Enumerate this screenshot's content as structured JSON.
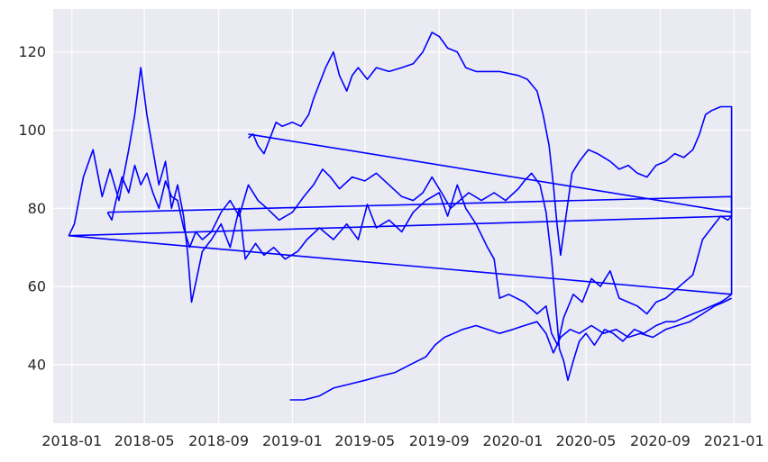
{
  "chart_data": {
    "type": "line",
    "title": "",
    "xlabel": "",
    "ylabel": "",
    "x_range": [
      "2017-12-01",
      "2021-01-29"
    ],
    "ylim": [
      25,
      131
    ],
    "x_ticks": [
      "2018-01",
      "2018-05",
      "2018-09",
      "2019-01",
      "2019-05",
      "2019-09",
      "2020-01",
      "2020-05",
      "2020-09",
      "2021-01"
    ],
    "y_ticks": [
      40,
      60,
      80,
      100,
      120
    ],
    "grid": true,
    "legend": "none",
    "colors": {
      "line": "#0000ff",
      "plot_bg": "#eaeaf2",
      "grid": "#ffffff",
      "page_bg": "#ffffff"
    },
    "series": [
      {
        "points": [
          [
            "2017-12-27",
            73
          ],
          [
            "2018-01-05",
            76
          ],
          [
            "2018-01-20",
            88
          ],
          [
            "2018-02-05",
            95
          ],
          [
            "2018-02-20",
            83
          ],
          [
            "2018-03-05",
            90
          ],
          [
            "2018-03-20",
            82
          ],
          [
            "2018-04-05",
            95
          ],
          [
            "2018-04-15",
            104
          ],
          [
            "2018-04-25",
            116
          ],
          [
            "2018-05-05",
            104
          ],
          [
            "2018-05-15",
            95
          ],
          [
            "2018-05-25",
            86
          ],
          [
            "2018-06-05",
            92
          ],
          [
            "2018-06-15",
            80
          ],
          [
            "2018-06-25",
            86
          ],
          [
            "2018-07-05",
            78
          ],
          [
            "2018-07-12",
            68
          ],
          [
            "2018-07-18",
            56
          ],
          [
            "2018-07-25",
            61
          ],
          [
            "2018-08-05",
            69
          ],
          [
            "2018-08-20",
            72
          ],
          [
            "2018-09-05",
            76
          ],
          [
            "2018-09-20",
            70
          ],
          [
            "2018-10-05",
            80
          ],
          [
            "2018-10-15",
            67
          ],
          [
            "2018-11-01",
            71
          ],
          [
            "2018-11-15",
            68
          ],
          [
            "2018-12-01",
            70
          ],
          [
            "2018-12-20",
            67
          ],
          [
            "2019-01-10",
            69
          ],
          [
            "2019-01-25",
            72
          ],
          [
            "2019-02-15",
            75
          ],
          [
            "2019-03-10",
            72
          ],
          [
            "2019-04-01",
            76
          ],
          [
            "2019-04-20",
            72
          ],
          [
            "2019-05-05",
            81
          ],
          [
            "2019-05-20",
            75
          ],
          [
            "2019-06-10",
            77
          ],
          [
            "2019-07-01",
            74
          ],
          [
            "2019-07-20",
            79
          ],
          [
            "2019-08-10",
            82
          ],
          [
            "2019-09-01",
            84
          ],
          [
            "2019-09-15",
            78
          ],
          [
            "2019-10-01",
            86
          ],
          [
            "2019-10-15",
            80
          ],
          [
            "2019-11-01",
            76
          ],
          [
            "2019-11-20",
            70
          ],
          [
            "2019-12-01",
            67
          ],
          [
            "2019-12-10",
            57
          ],
          [
            "2019-12-25",
            58
          ],
          [
            "2020-01-20",
            56
          ],
          [
            "2020-02-10",
            53
          ],
          [
            "2020-02-25",
            55
          ],
          [
            "2020-03-05",
            48
          ],
          [
            "2020-03-15",
            45
          ],
          [
            "2020-03-25",
            52
          ],
          [
            "2020-04-10",
            58
          ],
          [
            "2020-04-25",
            56
          ],
          [
            "2020-05-10",
            62
          ],
          [
            "2020-05-25",
            60
          ],
          [
            "2020-06-10",
            64
          ],
          [
            "2020-06-25",
            57
          ],
          [
            "2020-07-10",
            56
          ],
          [
            "2020-07-25",
            55
          ],
          [
            "2020-08-10",
            53
          ],
          [
            "2020-08-25",
            56
          ],
          [
            "2020-09-10",
            57
          ],
          [
            "2020-09-25",
            59
          ],
          [
            "2020-10-10",
            61
          ],
          [
            "2020-10-25",
            63
          ],
          [
            "2020-11-10",
            72
          ],
          [
            "2020-11-25",
            75
          ],
          [
            "2020-12-10",
            78
          ],
          [
            "2020-12-22",
            77
          ],
          [
            "2020-12-28",
            78
          ],
          [
            "2017-12-27",
            73
          ],
          [
            "2020-12-28",
            58
          ]
        ]
      },
      {
        "points": [
          [
            "2018-03-01",
            79
          ],
          [
            "2018-03-08",
            77
          ],
          [
            "2018-03-15",
            82
          ],
          [
            "2018-03-25",
            88
          ],
          [
            "2018-04-05",
            84
          ],
          [
            "2018-04-15",
            91
          ],
          [
            "2018-04-25",
            86
          ],
          [
            "2018-05-05",
            89
          ],
          [
            "2018-05-15",
            84
          ],
          [
            "2018-05-25",
            80
          ],
          [
            "2018-06-05",
            87
          ],
          [
            "2018-06-15",
            83
          ],
          [
            "2018-06-25",
            82
          ],
          [
            "2018-07-05",
            75
          ],
          [
            "2018-07-15",
            70
          ],
          [
            "2018-07-25",
            74
          ],
          [
            "2018-08-05",
            72
          ],
          [
            "2018-08-20",
            74
          ],
          [
            "2018-09-05",
            79
          ],
          [
            "2018-09-20",
            82
          ],
          [
            "2018-10-05",
            78
          ],
          [
            "2018-10-20",
            86
          ],
          [
            "2018-11-05",
            82
          ],
          [
            "2018-11-20",
            80
          ],
          [
            "2018-12-10",
            77
          ],
          [
            "2019-01-01",
            79
          ],
          [
            "2019-01-20",
            83
          ],
          [
            "2019-02-05",
            86
          ],
          [
            "2019-02-20",
            90
          ],
          [
            "2019-03-05",
            88
          ],
          [
            "2019-03-20",
            85
          ],
          [
            "2019-04-10",
            88
          ],
          [
            "2019-05-01",
            87
          ],
          [
            "2019-05-20",
            89
          ],
          [
            "2019-06-10",
            86
          ],
          [
            "2019-07-01",
            83
          ],
          [
            "2019-07-20",
            82
          ],
          [
            "2019-08-05",
            84
          ],
          [
            "2019-08-20",
            88
          ],
          [
            "2019-09-05",
            84
          ],
          [
            "2019-09-20",
            80
          ],
          [
            "2019-10-05",
            82
          ],
          [
            "2019-10-20",
            84
          ],
          [
            "2019-11-10",
            82
          ],
          [
            "2019-12-01",
            84
          ],
          [
            "2019-12-20",
            82
          ],
          [
            "2020-01-10",
            85
          ],
          [
            "2020-01-20",
            87
          ],
          [
            "2020-02-01",
            89
          ],
          [
            "2020-02-15",
            86
          ],
          [
            "2020-02-25",
            79
          ],
          [
            "2020-03-05",
            67
          ],
          [
            "2020-03-12",
            55
          ],
          [
            "2020-03-18",
            44
          ],
          [
            "2020-03-25",
            41
          ],
          [
            "2020-04-01",
            36
          ],
          [
            "2020-04-10",
            41
          ],
          [
            "2020-04-20",
            46
          ],
          [
            "2020-05-01",
            48
          ],
          [
            "2020-05-15",
            45
          ],
          [
            "2020-06-01",
            49
          ],
          [
            "2020-06-15",
            48
          ],
          [
            "2020-07-01",
            46
          ],
          [
            "2020-07-20",
            49
          ],
          [
            "2020-08-05",
            48
          ],
          [
            "2020-08-25",
            50
          ],
          [
            "2020-09-10",
            51
          ],
          [
            "2020-09-25",
            51
          ],
          [
            "2020-10-10",
            52
          ],
          [
            "2020-10-25",
            53
          ],
          [
            "2020-11-10",
            54
          ],
          [
            "2020-11-25",
            55
          ],
          [
            "2020-12-10",
            56
          ],
          [
            "2020-12-20",
            57
          ],
          [
            "2020-12-28",
            58
          ],
          [
            "2020-12-28",
            83
          ],
          [
            "2018-03-01",
            79
          ]
        ]
      },
      {
        "points": [
          [
            "2018-10-20",
            98
          ],
          [
            "2018-10-28",
            99
          ],
          [
            "2018-11-05",
            96
          ],
          [
            "2018-11-15",
            94
          ],
          [
            "2018-11-25",
            98
          ],
          [
            "2018-12-05",
            102
          ],
          [
            "2018-12-15",
            101
          ],
          [
            "2019-01-01",
            102
          ],
          [
            "2019-01-15",
            101
          ],
          [
            "2019-01-28",
            104
          ],
          [
            "2019-02-05",
            108
          ],
          [
            "2019-02-15",
            112
          ],
          [
            "2019-02-25",
            116
          ],
          [
            "2019-03-10",
            120
          ],
          [
            "2019-03-20",
            114
          ],
          [
            "2019-04-01",
            110
          ],
          [
            "2019-04-10",
            114
          ],
          [
            "2019-04-20",
            116
          ],
          [
            "2019-05-05",
            113
          ],
          [
            "2019-05-20",
            116
          ],
          [
            "2019-06-10",
            115
          ],
          [
            "2019-07-01",
            116
          ],
          [
            "2019-07-20",
            117
          ],
          [
            "2019-08-05",
            120
          ],
          [
            "2019-08-20",
            125
          ],
          [
            "2019-09-01",
            124
          ],
          [
            "2019-09-15",
            121
          ],
          [
            "2019-10-01",
            120
          ],
          [
            "2019-10-15",
            116
          ],
          [
            "2019-11-01",
            115
          ],
          [
            "2019-11-20",
            115
          ],
          [
            "2019-12-10",
            115
          ],
          [
            "2020-01-10",
            114
          ],
          [
            "2020-01-25",
            113
          ],
          [
            "2020-02-10",
            110
          ],
          [
            "2020-02-20",
            104
          ],
          [
            "2020-03-01",
            96
          ],
          [
            "2020-03-08",
            86
          ],
          [
            "2020-03-14",
            76
          ],
          [
            "2020-03-20",
            68
          ],
          [
            "2020-03-28",
            77
          ],
          [
            "2020-04-08",
            89
          ],
          [
            "2020-04-20",
            92
          ],
          [
            "2020-05-05",
            95
          ],
          [
            "2020-05-20",
            94
          ],
          [
            "2020-06-10",
            92
          ],
          [
            "2020-06-25",
            90
          ],
          [
            "2020-07-10",
            91
          ],
          [
            "2020-07-25",
            89
          ],
          [
            "2020-08-10",
            88
          ],
          [
            "2020-08-25",
            91
          ],
          [
            "2020-09-10",
            92
          ],
          [
            "2020-09-25",
            94
          ],
          [
            "2020-10-10",
            93
          ],
          [
            "2020-10-25",
            95
          ],
          [
            "2020-11-05",
            99
          ],
          [
            "2020-11-15",
            104
          ],
          [
            "2020-11-25",
            105
          ],
          [
            "2020-12-10",
            106
          ],
          [
            "2020-12-28",
            106
          ],
          [
            "2020-12-28",
            79
          ],
          [
            "2018-10-20",
            99
          ]
        ]
      },
      {
        "points": [
          [
            "2018-12-28",
            31
          ],
          [
            "2019-01-20",
            31
          ],
          [
            "2019-02-15",
            32
          ],
          [
            "2019-03-10",
            34
          ],
          [
            "2019-04-05",
            35
          ],
          [
            "2019-05-01",
            36
          ],
          [
            "2019-05-25",
            37
          ],
          [
            "2019-06-20",
            38
          ],
          [
            "2019-07-15",
            40
          ],
          [
            "2019-08-10",
            42
          ],
          [
            "2019-08-25",
            45
          ],
          [
            "2019-09-10",
            47
          ],
          [
            "2019-09-25",
            48
          ],
          [
            "2019-10-10",
            49
          ],
          [
            "2019-11-01",
            50
          ],
          [
            "2019-11-20",
            49
          ],
          [
            "2019-12-10",
            48
          ],
          [
            "2020-01-01",
            49
          ],
          [
            "2020-01-20",
            50
          ],
          [
            "2020-02-10",
            51
          ],
          [
            "2020-02-25",
            48
          ],
          [
            "2020-03-08",
            43
          ],
          [
            "2020-03-20",
            47
          ],
          [
            "2020-04-05",
            49
          ],
          [
            "2020-04-20",
            48
          ],
          [
            "2020-05-10",
            50
          ],
          [
            "2020-05-30",
            48
          ],
          [
            "2020-06-20",
            49
          ],
          [
            "2020-07-10",
            47
          ],
          [
            "2020-07-30",
            48
          ],
          [
            "2020-08-20",
            47
          ],
          [
            "2020-09-10",
            49
          ],
          [
            "2020-09-30",
            50
          ],
          [
            "2020-10-20",
            51
          ],
          [
            "2020-11-10",
            53
          ],
          [
            "2020-11-30",
            55
          ],
          [
            "2020-12-15",
            56
          ],
          [
            "2020-12-28",
            57
          ]
        ]
      }
    ]
  }
}
